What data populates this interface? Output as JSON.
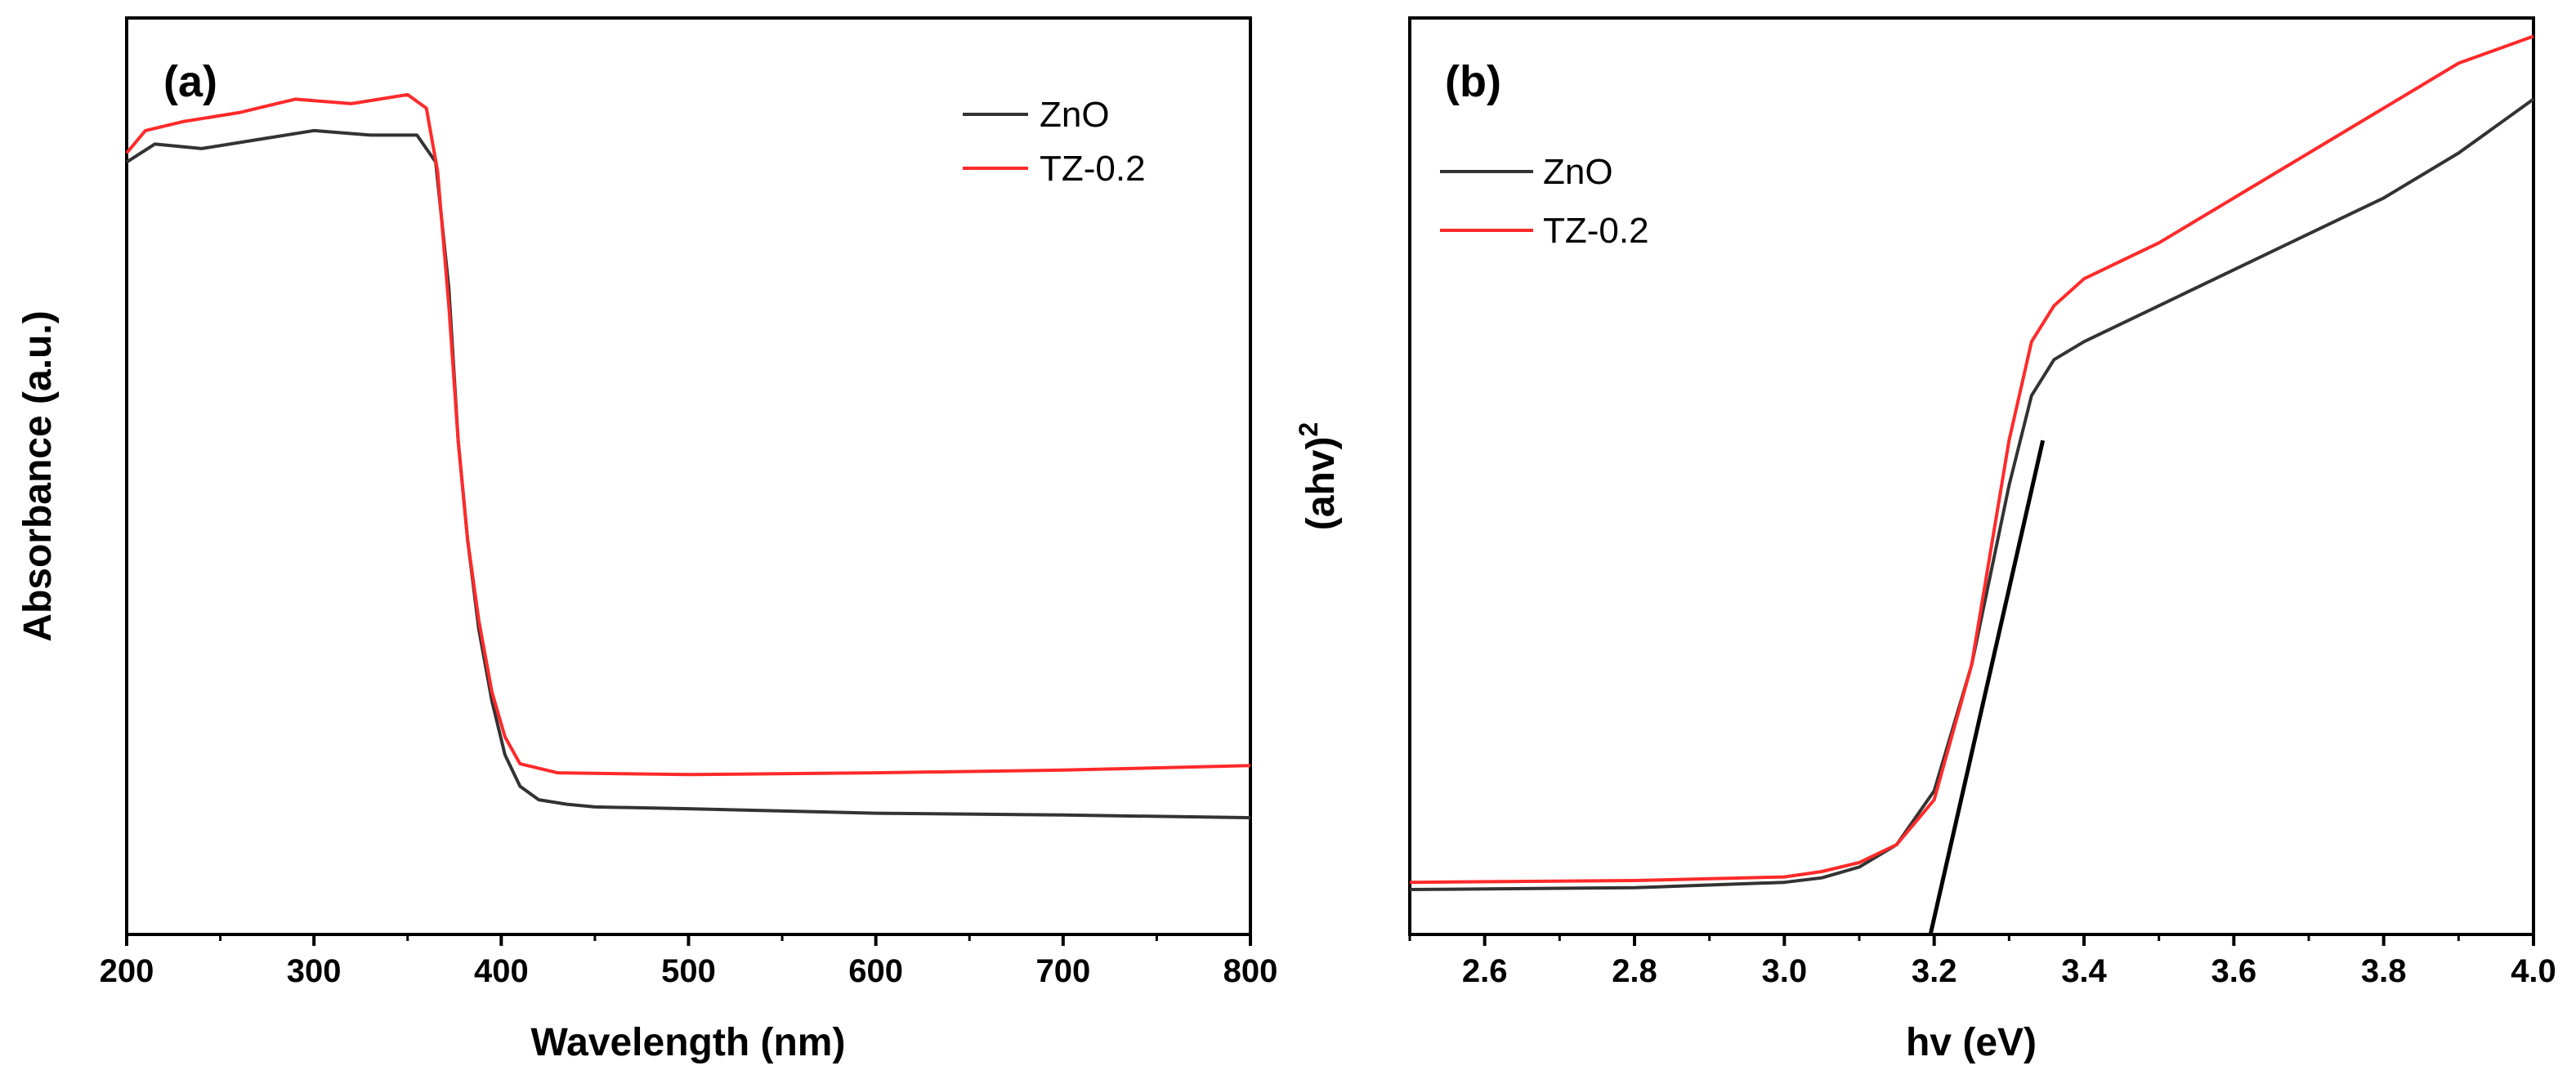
{
  "colors": {
    "zno": "#333333",
    "tz": "#ff2a2a",
    "fit": "#000000",
    "axis": "#000000"
  },
  "chart_data": [
    {
      "type": "line",
      "panel_label": "(a)",
      "xlabel": "Wavelength (nm)",
      "ylabel": "Absorbance (a.u.)",
      "xlim": [
        200,
        800
      ],
      "ylim": [
        0,
        1
      ],
      "xticks": [
        200,
        300,
        400,
        500,
        600,
        700,
        800
      ],
      "xtick_labels": [
        "200",
        "300",
        "400",
        "500",
        "600",
        "700",
        "800"
      ],
      "legend": [
        "ZnO",
        "TZ-0.2"
      ],
      "legend_position": "top-right",
      "series": [
        {
          "name": "ZnO",
          "color": "#333333",
          "x": [
            200,
            215,
            240,
            270,
            300,
            330,
            355,
            365,
            372,
            377,
            382,
            388,
            395,
            402,
            410,
            420,
            435,
            450,
            500,
            600,
            700,
            800
          ],
          "y": [
            0.86,
            0.88,
            0.875,
            0.885,
            0.895,
            0.89,
            0.89,
            0.86,
            0.72,
            0.55,
            0.44,
            0.34,
            0.26,
            0.2,
            0.165,
            0.15,
            0.145,
            0.142,
            0.14,
            0.135,
            0.133,
            0.13
          ]
        },
        {
          "name": "TZ-0.2",
          "color": "#ff2a2a",
          "x": [
            200,
            210,
            230,
            260,
            290,
            320,
            350,
            360,
            366,
            372,
            377,
            382,
            388,
            395,
            402,
            410,
            430,
            500,
            600,
            700,
            800
          ],
          "y": [
            0.87,
            0.895,
            0.905,
            0.915,
            0.93,
            0.925,
            0.935,
            0.92,
            0.85,
            0.7,
            0.55,
            0.44,
            0.35,
            0.27,
            0.22,
            0.19,
            0.18,
            0.178,
            0.18,
            0.183,
            0.188
          ]
        }
      ]
    },
    {
      "type": "line",
      "panel_label": "(b)",
      "xlabel": "hv (eV)",
      "ylabel": "(ahv)",
      "ylabel_superscript": "2",
      "xlim": [
        2.5,
        4.0
      ],
      "ylim": [
        0,
        1
      ],
      "xticks": [
        2.6,
        2.8,
        3.0,
        3.2,
        3.4,
        3.6,
        3.8,
        4.0
      ],
      "xtick_labels": [
        "2.6",
        "2.8",
        "3.0",
        "3.2",
        "3.4",
        "3.6",
        "3.8",
        "4.0"
      ],
      "legend": [
        "ZnO",
        "TZ-0.2"
      ],
      "legend_position": "top-left",
      "series": [
        {
          "name": "ZnO",
          "color": "#333333",
          "x": [
            2.5,
            2.8,
            3.0,
            3.05,
            3.1,
            3.15,
            3.2,
            3.25,
            3.3,
            3.33,
            3.36,
            3.4,
            3.45,
            3.5,
            3.6,
            3.7,
            3.8,
            3.9,
            4.0
          ],
          "y": [
            0.05,
            0.052,
            0.058,
            0.063,
            0.075,
            0.1,
            0.16,
            0.3,
            0.5,
            0.6,
            0.64,
            0.66,
            0.68,
            0.7,
            0.74,
            0.78,
            0.82,
            0.87,
            0.93
          ]
        },
        {
          "name": "TZ-0.2",
          "color": "#ff2a2a",
          "x": [
            2.5,
            2.8,
            3.0,
            3.05,
            3.1,
            3.15,
            3.2,
            3.25,
            3.3,
            3.33,
            3.36,
            3.4,
            3.45,
            3.5,
            3.6,
            3.7,
            3.8,
            3.9,
            4.0
          ],
          "y": [
            0.058,
            0.06,
            0.064,
            0.07,
            0.08,
            0.1,
            0.15,
            0.3,
            0.55,
            0.66,
            0.7,
            0.73,
            0.75,
            0.77,
            0.82,
            0.87,
            0.92,
            0.97,
            1.0
          ]
        },
        {
          "name": "linear fit",
          "color": "#000000",
          "x": [
            3.195,
            3.345
          ],
          "y": [
            0.0,
            0.55
          ]
        }
      ]
    }
  ]
}
